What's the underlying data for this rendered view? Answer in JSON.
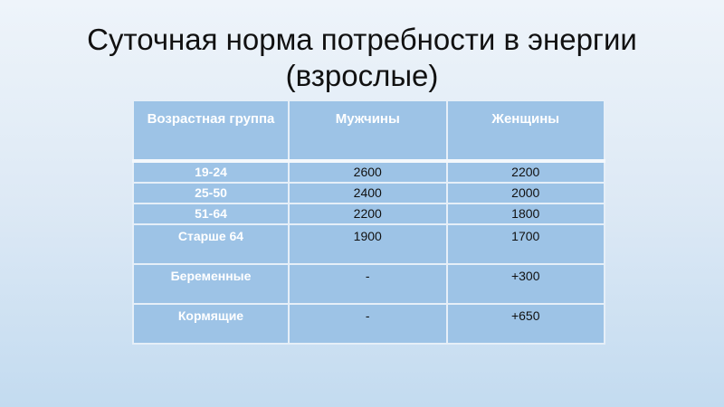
{
  "title_line1": "Суточная норма потребности в энергии",
  "title_line2": "(взрослые)",
  "table": {
    "headers": [
      "Возрастная группа",
      "Мужчины",
      "Женщины"
    ],
    "rows": [
      [
        "19-24",
        "2600",
        "2200"
      ],
      [
        "25-50",
        "2400",
        "2000"
      ],
      [
        "51-64",
        "2200",
        "1800"
      ],
      [
        "Старше 64",
        "1900",
        "1700"
      ],
      [
        "Беременные",
        "-",
        "+300"
      ],
      [
        "Кормящие",
        "-",
        "+650"
      ]
    ]
  },
  "colors": {
    "cell": "#9dc3e6",
    "background": "#dde9f5",
    "header_text": "#ffffff"
  }
}
